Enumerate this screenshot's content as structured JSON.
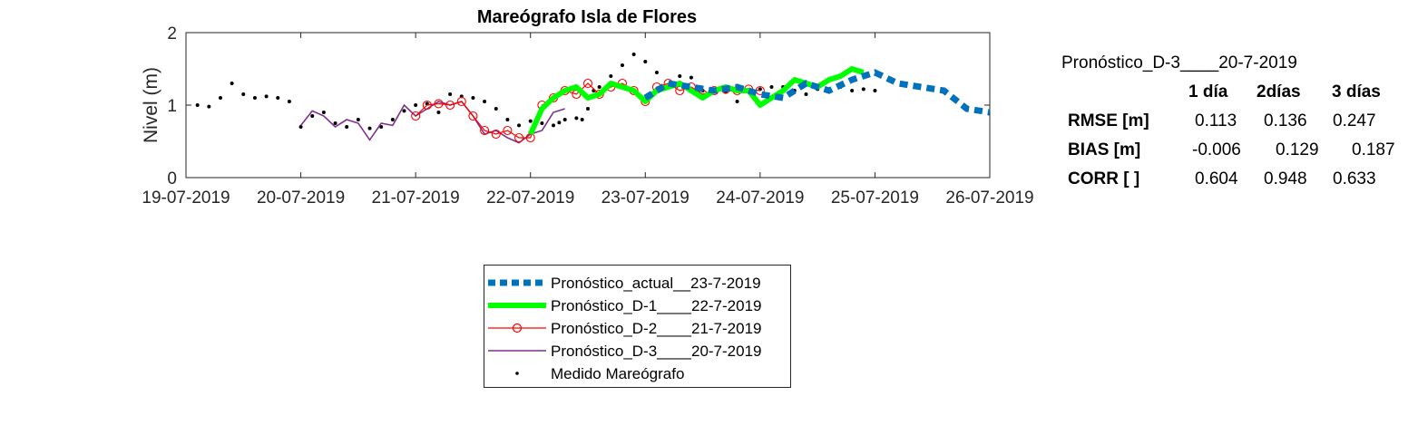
{
  "chart_data": {
    "type": "line",
    "title": "Mareógrafo Isla de Flores",
    "xlabel": "",
    "ylabel": "Nivel (m)",
    "xlim": [
      "19-07-2019",
      "26-07-2019"
    ],
    "ylim": [
      0,
      2
    ],
    "x_ticks": [
      "19-07-2019",
      "20-07-2019",
      "21-07-2019",
      "22-07-2019",
      "23-07-2019",
      "24-07-2019",
      "25-07-2019",
      "26-07-2019"
    ],
    "y_ticks": [
      "0",
      "1",
      "2"
    ],
    "grid": false,
    "x_unit": "days since 19-07-2019 00:00",
    "series": [
      {
        "name": "Medido Mareógrafo",
        "style": "dots",
        "color": "#000000",
        "x": [
          0.1,
          0.2,
          0.3,
          0.4,
          0.5,
          0.6,
          0.7,
          0.8,
          0.9,
          1.0,
          1.1,
          1.2,
          1.3,
          1.4,
          1.5,
          1.6,
          1.7,
          1.8,
          1.9,
          2.0,
          2.1,
          2.2,
          2.3,
          2.4,
          2.5,
          2.6,
          2.7,
          2.8,
          2.9,
          3.0,
          3.1,
          3.2,
          3.25,
          3.3,
          3.4,
          3.45,
          3.5,
          3.55,
          3.6,
          3.7,
          3.8,
          3.9,
          4.0,
          4.1,
          4.2,
          4.3,
          4.4,
          4.5,
          4.6,
          4.7,
          4.8,
          4.9,
          5.0,
          5.1,
          5.2,
          5.3,
          5.4,
          5.5,
          5.6,
          5.7,
          5.8,
          5.9,
          6.0
        ],
        "y": [
          1.0,
          0.98,
          1.1,
          1.3,
          1.15,
          1.1,
          1.12,
          1.1,
          1.05,
          0.7,
          0.85,
          0.9,
          0.75,
          0.7,
          0.8,
          0.68,
          0.7,
          0.8,
          0.92,
          1.0,
          1.02,
          0.9,
          1.15,
          1.12,
          1.1,
          1.05,
          0.95,
          0.8,
          0.72,
          0.78,
          0.75,
          0.72,
          0.76,
          0.8,
          0.82,
          0.8,
          0.95,
          1.2,
          1.25,
          1.4,
          1.55,
          1.7,
          1.6,
          1.45,
          1.25,
          1.4,
          1.38,
          1.2,
          1.22,
          1.18,
          1.05,
          1.2,
          1.22,
          1.25,
          1.25,
          1.2,
          1.15,
          1.22,
          1.22,
          1.25,
          1.2,
          1.22,
          1.2
        ]
      },
      {
        "name": "Pronóstico_D-3____20-7-2019",
        "style": "line",
        "color": "#7e2f8e",
        "x": [
          1.0,
          1.1,
          1.2,
          1.3,
          1.4,
          1.5,
          1.6,
          1.7,
          1.8,
          1.9,
          2.0,
          2.1,
          2.2,
          2.3,
          2.4,
          2.5,
          2.6,
          2.7,
          2.8,
          2.9,
          3.0,
          3.1,
          3.2,
          3.3
        ],
        "y": [
          0.72,
          0.92,
          0.85,
          0.7,
          0.8,
          0.75,
          0.52,
          0.75,
          0.72,
          1.0,
          0.85,
          0.95,
          1.05,
          1.0,
          1.05,
          0.85,
          0.6,
          0.65,
          0.55,
          0.48,
          0.6,
          0.65,
          0.9,
          0.95
        ]
      },
      {
        "name": "Pronóstico_D-2____21-7-2019",
        "style": "line-circle",
        "color": "#ff0000",
        "x": [
          2.0,
          2.1,
          2.2,
          2.3,
          2.4,
          2.5,
          2.6,
          2.7,
          2.8,
          2.9,
          3.0,
          3.1,
          3.2,
          3.3,
          3.4,
          3.5,
          3.6,
          3.7,
          3.8,
          3.9,
          4.0,
          4.1,
          4.2,
          4.3,
          4.4,
          4.5,
          4.6,
          4.7,
          4.8,
          4.9,
          5.0
        ],
        "y": [
          0.85,
          1.0,
          1.02,
          1.0,
          1.05,
          0.85,
          0.65,
          0.6,
          0.65,
          0.55,
          0.55,
          1.0,
          1.1,
          1.2,
          1.15,
          1.3,
          1.15,
          1.25,
          1.3,
          1.2,
          1.05,
          1.25,
          1.3,
          1.2,
          1.25,
          1.15,
          1.2,
          1.22,
          1.2,
          1.22,
          1.2
        ]
      },
      {
        "name": "Pronóstico_D-1____22-7-2019",
        "style": "thick-line",
        "color": "#00ff00",
        "x": [
          3.0,
          3.1,
          3.2,
          3.3,
          3.4,
          3.5,
          3.6,
          3.7,
          3.8,
          3.9,
          4.0,
          4.1,
          4.2,
          4.3,
          4.4,
          4.5,
          4.6,
          4.7,
          4.8,
          4.9,
          5.0,
          5.1,
          5.2,
          5.3,
          5.4,
          5.5,
          5.6,
          5.7,
          5.8,
          5.9
        ],
        "y": [
          0.6,
          0.95,
          1.1,
          1.2,
          1.25,
          1.1,
          1.15,
          1.3,
          1.25,
          1.2,
          1.05,
          1.2,
          1.25,
          1.3,
          1.2,
          1.1,
          1.2,
          1.25,
          1.2,
          1.2,
          1.0,
          1.1,
          1.2,
          1.35,
          1.3,
          1.25,
          1.35,
          1.4,
          1.5,
          1.45
        ]
      },
      {
        "name": "Pronóstico_actual__23-7-2019",
        "style": "dashed",
        "color": "#0072bd",
        "x": [
          4.0,
          4.2,
          4.4,
          4.6,
          4.8,
          5.0,
          5.2,
          5.4,
          5.6,
          5.8,
          6.0,
          6.2,
          6.4,
          6.6,
          6.8,
          7.0
        ],
        "y": [
          1.1,
          1.3,
          1.25,
          1.2,
          1.25,
          1.15,
          1.1,
          1.3,
          1.2,
          1.35,
          1.45,
          1.3,
          1.25,
          1.2,
          0.95,
          0.9
        ]
      }
    ],
    "legend": {
      "placement": "below",
      "entries": [
        "Pronóstico_actual__23-7-2019",
        "Pronóstico_D-1____22-7-2019",
        "Pronóstico_D-2____21-7-2019",
        "Pronóstico_D-3____20-7-2019",
        "Medido Mareógrafo"
      ]
    }
  },
  "stats": {
    "heading": "Pronóstico_D-3____20-7-2019",
    "columns": [
      "1 día",
      "2días",
      "3 días"
    ],
    "rows": [
      {
        "label": "RMSE [m]",
        "values": [
          "0.113",
          "0.136",
          "0.247"
        ]
      },
      {
        "label": "BIAS [m]",
        "values": [
          "-0.006",
          "0.129",
          "0.187"
        ]
      },
      {
        "label": "CORR [  ]",
        "values": [
          "0.604",
          "0.948",
          "0.633"
        ]
      }
    ]
  }
}
